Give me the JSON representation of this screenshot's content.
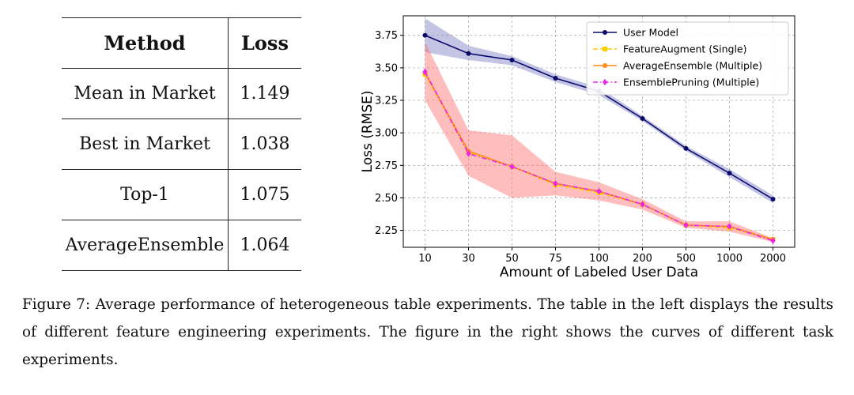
{
  "table": {
    "headers": [
      "Method",
      "Loss"
    ],
    "rows": [
      [
        "Mean in Market",
        "1.149"
      ],
      [
        "Best in Market",
        "1.038"
      ],
      [
        "Top-1",
        "1.075"
      ],
      [
        "AverageEnsemble",
        "1.064"
      ]
    ]
  },
  "caption": "Figure 7: Average performance of heterogeneous table experiments. The table in the left displays the results of different feature engineering experiments. The figure in the right shows the curves of different task experiments.",
  "chart_data": {
    "type": "line",
    "categories": [
      "10",
      "30",
      "50",
      "75",
      "100",
      "200",
      "500",
      "1000",
      "2000"
    ],
    "xlabel": "Amount of Labeled User Data",
    "ylabel": "Loss (RMSE)",
    "ylim": [
      2.12,
      3.9
    ],
    "yticks": [
      "2.25",
      "2.50",
      "2.75",
      "3.00",
      "3.25",
      "3.50",
      "3.75"
    ],
    "grid": true,
    "legend_position": "top-right",
    "series": [
      {
        "name": "User Model",
        "color": "#0b0b6e",
        "marker": "circle",
        "line_style": "solid",
        "values": [
          3.75,
          3.61,
          3.56,
          3.42,
          3.32,
          3.11,
          2.88,
          2.69,
          2.49
        ],
        "band_lower": [
          3.62,
          3.56,
          3.52,
          3.39,
          3.29,
          3.09,
          2.86,
          2.66,
          2.46
        ],
        "band_upper": [
          3.88,
          3.67,
          3.59,
          3.45,
          3.35,
          3.13,
          2.9,
          2.72,
          2.52
        ]
      },
      {
        "name": "FeatureAugment (Single)",
        "color": "#ffcc00",
        "marker": "square",
        "line_style": "dashed",
        "values": [
          3.45,
          2.85,
          2.74,
          2.6,
          2.54,
          2.45,
          2.29,
          2.27,
          2.18
        ]
      },
      {
        "name": "AverageEnsemble (Multiple)",
        "color": "#ff8c1a",
        "marker": "circle",
        "line_style": "solid",
        "values": [
          3.46,
          2.86,
          2.74,
          2.61,
          2.55,
          2.45,
          2.29,
          2.28,
          2.18
        ]
      },
      {
        "name": "EnsemblePruning (Multiple)",
        "color": "#ee22ee",
        "marker": "diamond",
        "line_style": "dashdot",
        "values": [
          3.47,
          2.84,
          2.74,
          2.61,
          2.55,
          2.45,
          2.29,
          2.28,
          2.17
        ],
        "band_lower": [
          3.25,
          2.67,
          2.5,
          2.52,
          2.48,
          2.41,
          2.27,
          2.24,
          2.16
        ],
        "band_upper": [
          3.7,
          3.02,
          2.98,
          2.7,
          2.62,
          2.49,
          2.32,
          2.32,
          2.19
        ]
      }
    ],
    "band_colors": {
      "User Model": "#7c7cc4",
      "EnsemblePruning (Multiple)": "#ff6f6f"
    }
  }
}
